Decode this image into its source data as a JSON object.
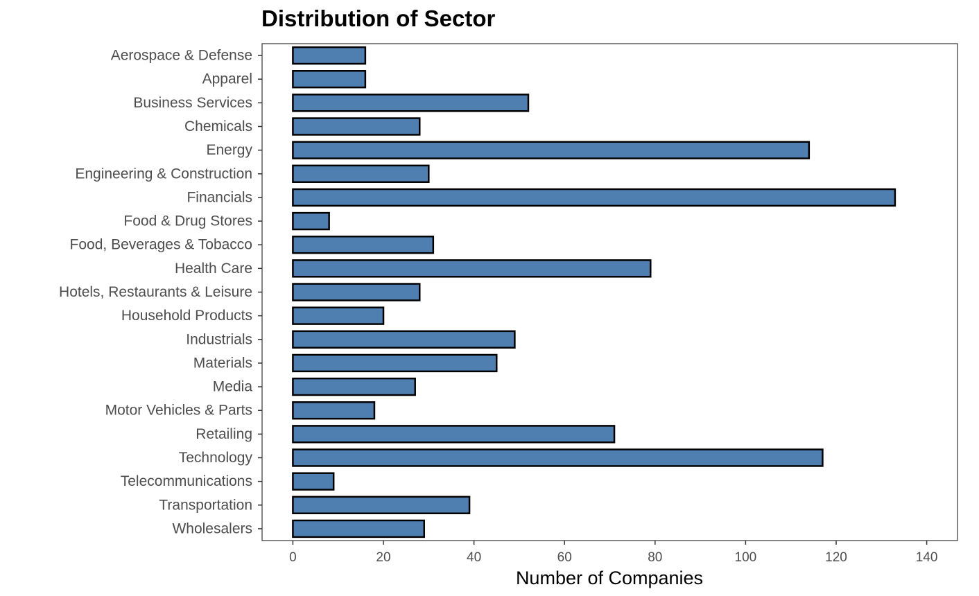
{
  "chart_data": {
    "type": "bar",
    "orientation": "horizontal",
    "title": "Distribution of Sector",
    "xlabel": "Number of Companies",
    "ylabel": "",
    "categories": [
      "Aerospace & Defense",
      "Apparel",
      "Business Services",
      "Chemicals",
      "Energy",
      "Engineering & Construction",
      "Financials",
      "Food & Drug Stores",
      "Food, Beverages & Tobacco",
      "Health Care",
      "Hotels, Restaurants & Leisure",
      "Household Products",
      "Industrials",
      "Materials",
      "Media",
      "Motor Vehicles & Parts",
      "Retailing",
      "Technology",
      "Telecommunications",
      "Transportation",
      "Wholesalers"
    ],
    "values": [
      16,
      16,
      52,
      28,
      114,
      30,
      133,
      8,
      31,
      79,
      28,
      20,
      49,
      45,
      27,
      18,
      71,
      117,
      9,
      39,
      29
    ],
    "x_ticks": [
      0,
      20,
      40,
      60,
      80,
      100,
      120,
      140
    ],
    "xlim": [
      -6.8,
      146.8
    ],
    "grid": false,
    "legend": "none",
    "bar_color": "#4f7fb1",
    "bar_outline": "#000000"
  }
}
